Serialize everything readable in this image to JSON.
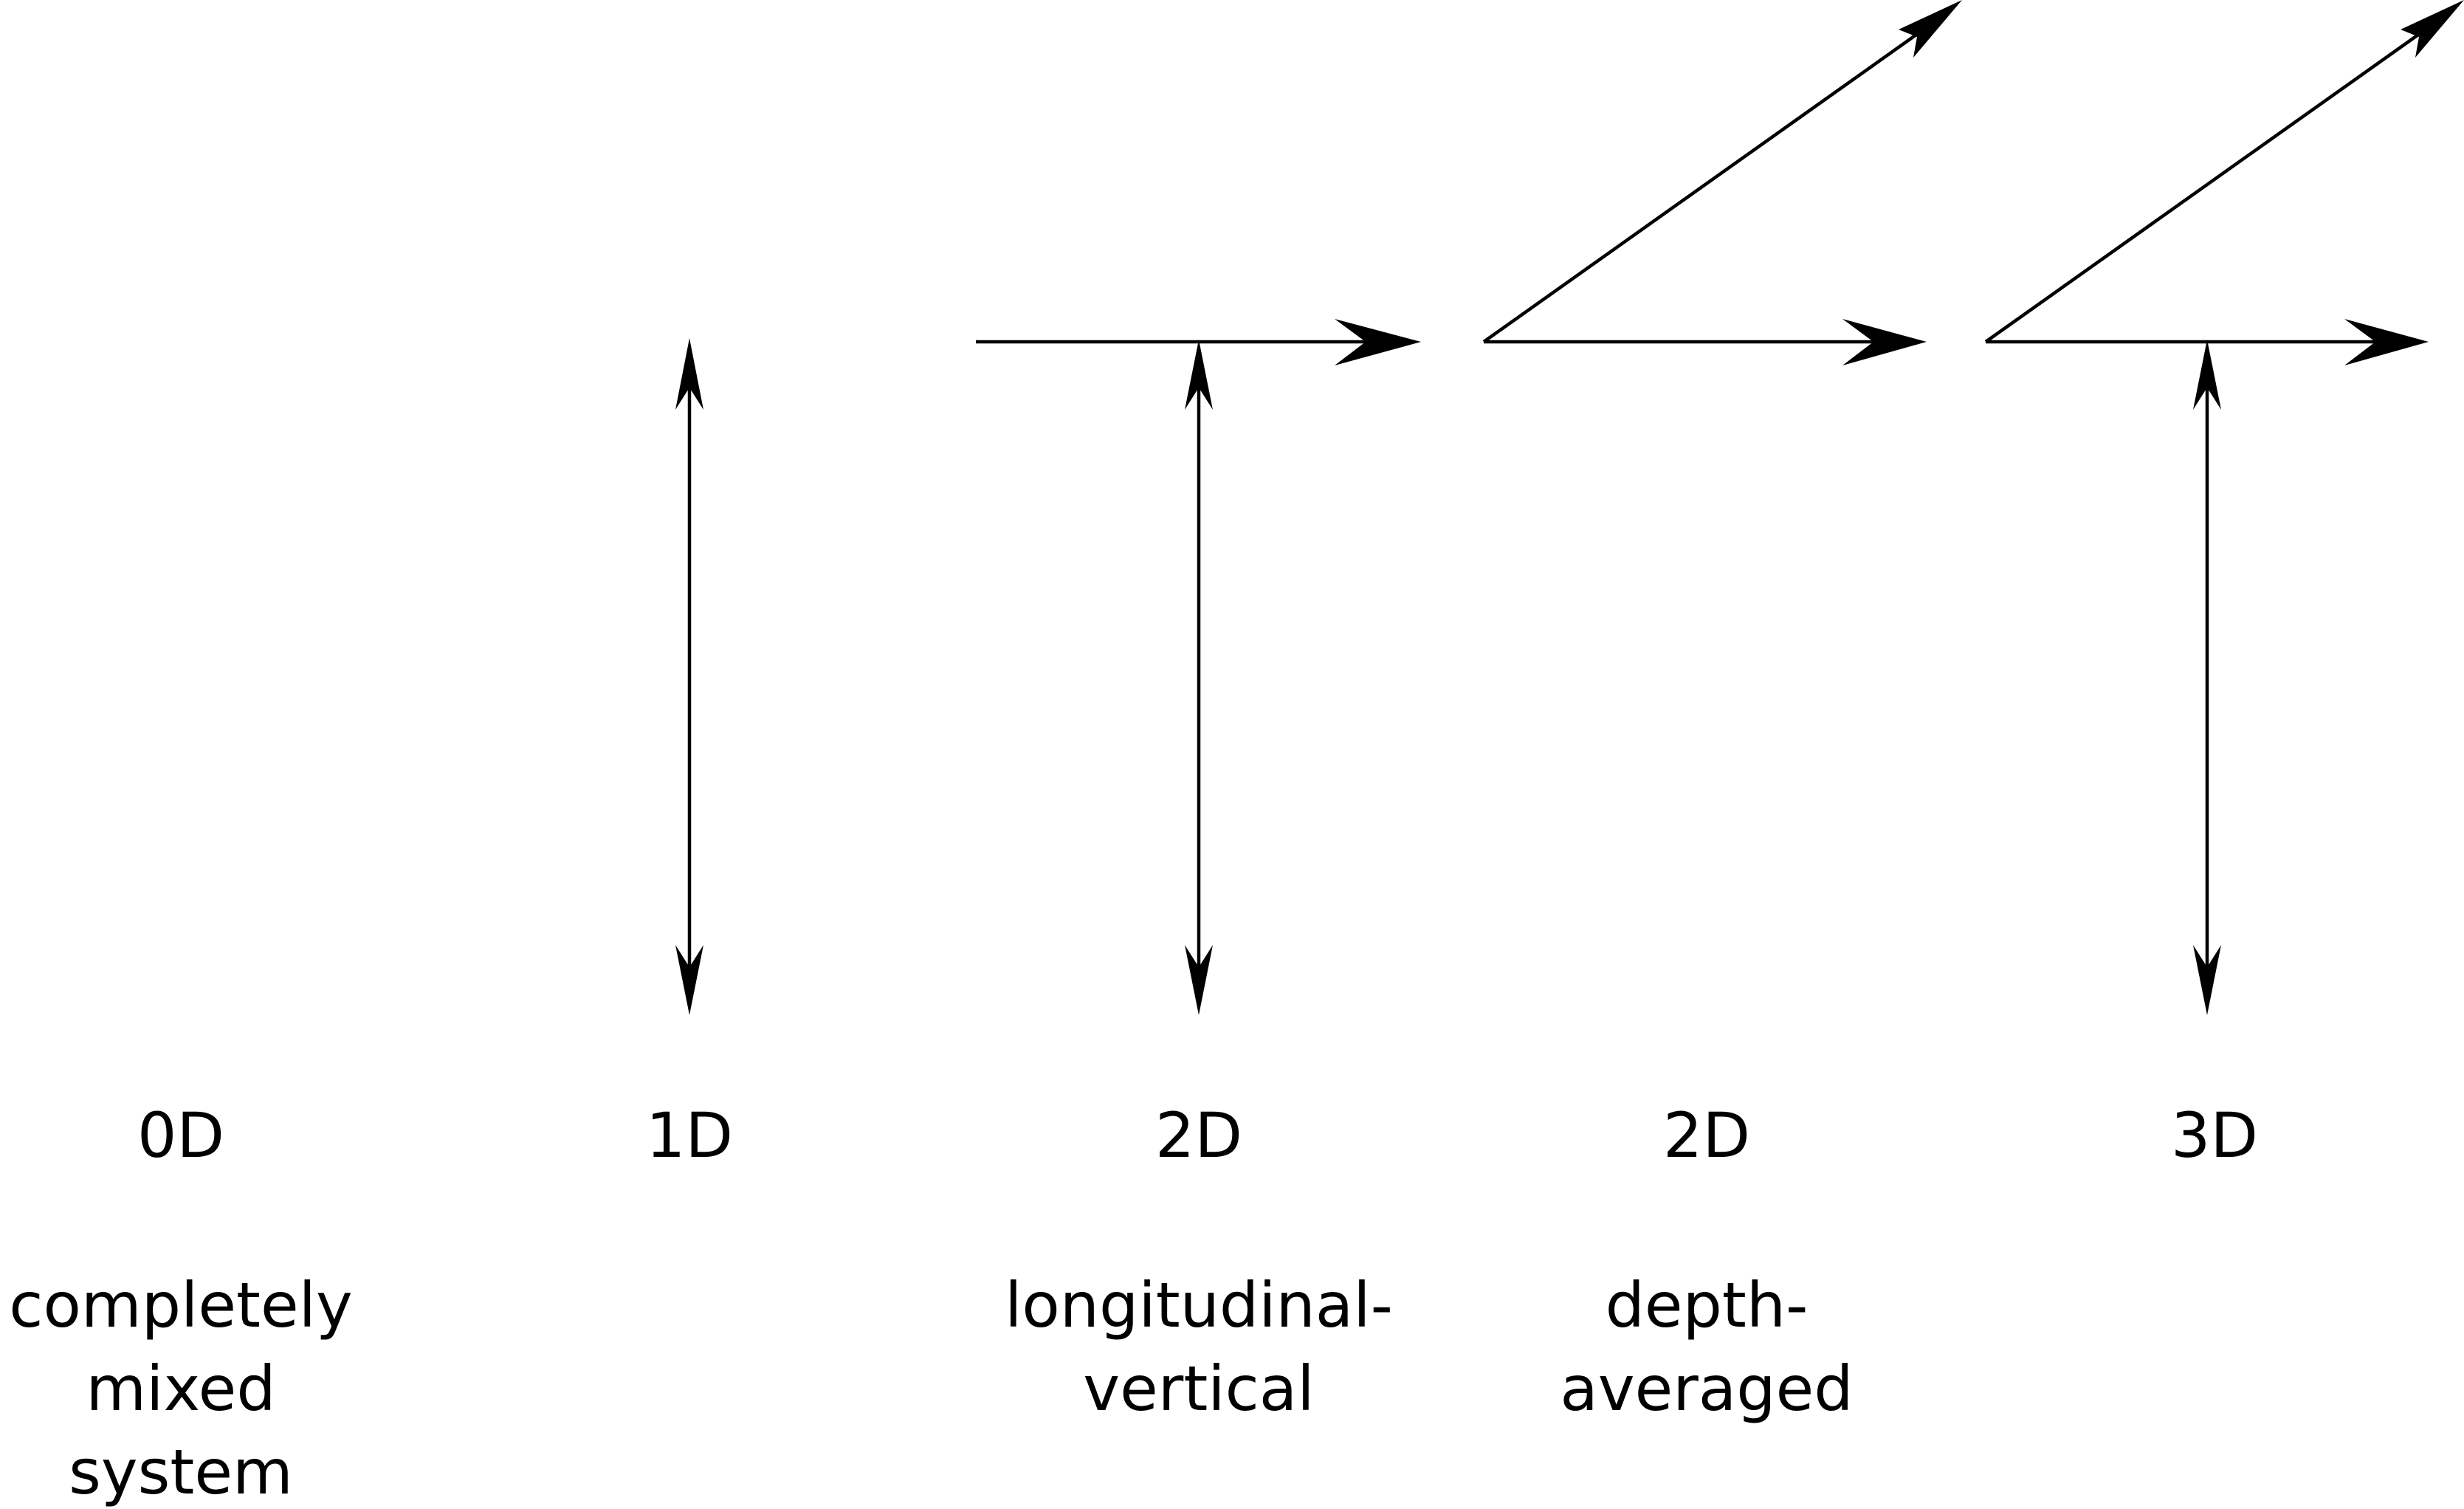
{
  "panels": [
    {
      "dimension": "0D",
      "description": [
        "completely",
        "mixed",
        "system"
      ]
    },
    {
      "dimension": "1D",
      "description": []
    },
    {
      "dimension": "2D",
      "description": [
        "longitudinal-",
        "vertical"
      ]
    },
    {
      "dimension": "2D",
      "description": [
        "depth-",
        "averaged"
      ]
    },
    {
      "dimension": "3D",
      "description": []
    }
  ],
  "colors": {
    "stroke": "#000000",
    "background": "#ffffff"
  }
}
